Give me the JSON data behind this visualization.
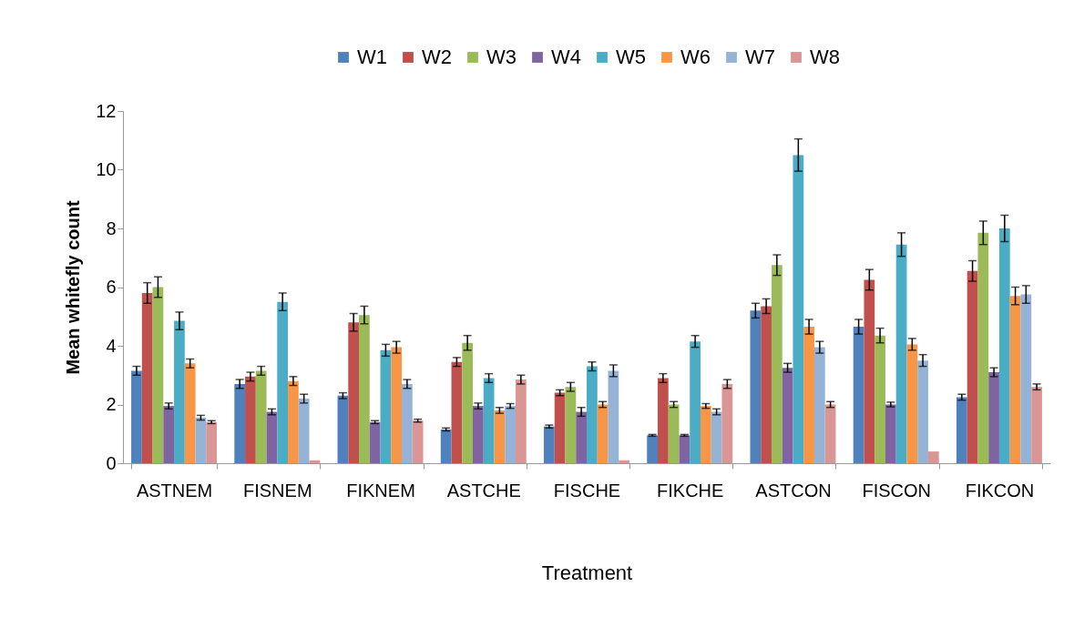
{
  "chart_data": {
    "type": "bar",
    "xlabel": "Treatment",
    "ylabel": "Mean whitefly count",
    "categories": [
      "ASTNEM",
      "FISNEM",
      "FIKNEM",
      "ASTCHE",
      "FISCHE",
      "FIKCHE",
      "ASTCON",
      "FISCON",
      "FIKCON"
    ],
    "ylim": [
      0,
      12
    ],
    "yticks": [
      0,
      2,
      4,
      6,
      8,
      10,
      12
    ],
    "grid": false,
    "legend": "top",
    "series": [
      {
        "name": "W1",
        "color": "#4f81bd",
        "values": [
          3.15,
          2.7,
          2.3,
          1.15,
          1.25,
          0.95,
          5.2,
          4.65,
          2.25
        ],
        "errors": [
          0.15,
          0.15,
          0.1,
          0.05,
          0.05,
          0.03,
          0.25,
          0.25,
          0.1
        ]
      },
      {
        "name": "W2",
        "color": "#c0504d",
        "values": [
          5.8,
          2.95,
          4.8,
          3.45,
          2.4,
          2.9,
          5.35,
          6.25,
          6.55
        ],
        "errors": [
          0.35,
          0.15,
          0.3,
          0.15,
          0.1,
          0.15,
          0.25,
          0.35,
          0.35
        ]
      },
      {
        "name": "W3",
        "color": "#9bbb59",
        "values": [
          6.0,
          3.15,
          5.05,
          4.1,
          2.6,
          2.0,
          6.75,
          4.35,
          7.85
        ],
        "errors": [
          0.35,
          0.15,
          0.3,
          0.25,
          0.15,
          0.1,
          0.35,
          0.25,
          0.4
        ]
      },
      {
        "name": "W4",
        "color": "#8064a2",
        "values": [
          1.95,
          1.75,
          1.4,
          1.95,
          1.75,
          0.95,
          3.25,
          2.0,
          3.1
        ],
        "errors": [
          0.1,
          0.1,
          0.05,
          0.1,
          0.15,
          0.03,
          0.15,
          0.08,
          0.15
        ]
      },
      {
        "name": "W5",
        "color": "#4bacc6",
        "values": [
          4.85,
          5.5,
          3.85,
          2.9,
          3.3,
          4.15,
          10.5,
          7.45,
          8.0
        ],
        "errors": [
          0.3,
          0.3,
          0.2,
          0.15,
          0.15,
          0.2,
          0.55,
          0.4,
          0.45
        ]
      },
      {
        "name": "W6",
        "color": "#f79646",
        "values": [
          3.4,
          2.8,
          3.95,
          1.8,
          2.0,
          1.95,
          4.65,
          4.05,
          5.7
        ],
        "errors": [
          0.15,
          0.15,
          0.2,
          0.1,
          0.1,
          0.08,
          0.25,
          0.2,
          0.3
        ]
      },
      {
        "name": "W7",
        "color": "#95b3d7",
        "values": [
          1.55,
          2.2,
          2.7,
          1.95,
          3.15,
          1.75,
          3.95,
          3.5,
          5.75
        ],
        "errors": [
          0.08,
          0.15,
          0.15,
          0.08,
          0.2,
          0.1,
          0.2,
          0.2,
          0.3
        ]
      },
      {
        "name": "W8",
        "color": "#d99694",
        "values": [
          1.4,
          0.1,
          1.45,
          2.85,
          0.1,
          2.7,
          2.0,
          0.4,
          2.6
        ],
        "errors": [
          0.05,
          null,
          0.05,
          0.15,
          null,
          0.15,
          0.1,
          null,
          0.1
        ]
      }
    ]
  }
}
